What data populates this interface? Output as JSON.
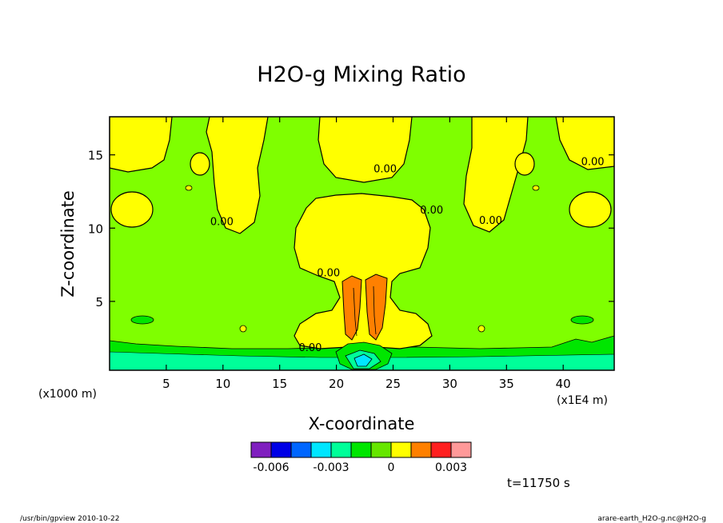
{
  "chart_data": {
    "type": "heatmap",
    "title": "H2O-g Mixing Ratio",
    "xlabel": "X-coordinate",
    "ylabel": "Z-coordinate",
    "x_unit_label": "(x1E4 m)",
    "y_unit_label": "(x1000 m)",
    "xlim": [
      0,
      44.5
    ],
    "ylim": [
      0.3,
      17.6
    ],
    "x_ticks": [
      5,
      10,
      15,
      20,
      25,
      30,
      35,
      40
    ],
    "x_tick_labels": [
      "5",
      "10",
      "15",
      "20",
      "25",
      "30",
      "35",
      "40"
    ],
    "y_ticks": [
      5,
      10,
      15
    ],
    "y_tick_labels": [
      "5",
      "10",
      "15"
    ],
    "contour_labels": [
      {
        "text": "0.00",
        "x": 9.9,
        "y": 10.2
      },
      {
        "text": "0.00",
        "x": 24.3,
        "y": 13.8
      },
      {
        "text": "0.00",
        "x": 28.4,
        "y": 11.0
      },
      {
        "text": "0.00",
        "x": 19.3,
        "y": 6.7
      },
      {
        "text": "0.00",
        "x": 17.7,
        "y": 1.6
      },
      {
        "text": "0.00",
        "x": 33.6,
        "y": 10.3
      },
      {
        "text": "0.00",
        "x": 42.6,
        "y": 14.3
      }
    ],
    "colorbar": {
      "colors": [
        "#7f1fbf",
        "#0000e6",
        "#0066ff",
        "#00e6ff",
        "#00ff99",
        "#00e600",
        "#66e600",
        "#ffff00",
        "#ff8000",
        "#ff2020",
        "#ff9999"
      ],
      "tick_values": [
        "-0.006",
        "-0.003",
        "0",
        "0.003"
      ]
    },
    "field_levels": {
      "background": "#7fff00",
      "positive_low": "#ffff00",
      "positive_high": "#ff8000",
      "negative_low": "#00e600",
      "negative_mid": "#00ff99",
      "negative_high": "#00e6ff"
    },
    "time_label": "t=11750 s"
  },
  "footer": {
    "left": "/usr/bin/gpview  2010-10-22",
    "right": "arare-earth_H2O-g.nc@H2O-g"
  }
}
